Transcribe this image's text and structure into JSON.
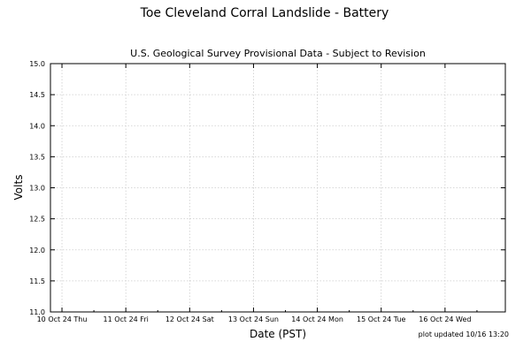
{
  "chart_data": {
    "type": "line",
    "title": "Toe Cleveland Corral Landslide - Battery",
    "subtitle": "U.S. Geological Survey Provisional Data - Subject to Revision",
    "xlabel": "Date (PST)",
    "ylabel": "Volts",
    "footnote": "plot updated 10/16 13:20",
    "ylim": [
      11.0,
      15.0
    ],
    "yticks": [
      "11.0",
      "11.5",
      "12.0",
      "12.5",
      "13.0",
      "13.5",
      "14.0",
      "14.5",
      "15.0"
    ],
    "xlim": [
      "2024-10-09 19:40",
      "2024-10-16 22:40"
    ],
    "xticks": [
      {
        "date": "2024-10-10",
        "label": "10 Oct 24 Thu"
      },
      {
        "date": "2024-10-11",
        "label": "11 Oct 24 Fri"
      },
      {
        "date": "2024-10-12",
        "label": "12 Oct 24 Sat"
      },
      {
        "date": "2024-10-13",
        "label": "13 Oct 24 Sun"
      },
      {
        "date": "2024-10-14",
        "label": "14 Oct 24 Mon"
      },
      {
        "date": "2024-10-15",
        "label": "15 Oct 24 Tue"
      },
      {
        "date": "2024-10-16",
        "label": "16 Oct 24 Wed"
      }
    ],
    "grid": true,
    "series": []
  }
}
